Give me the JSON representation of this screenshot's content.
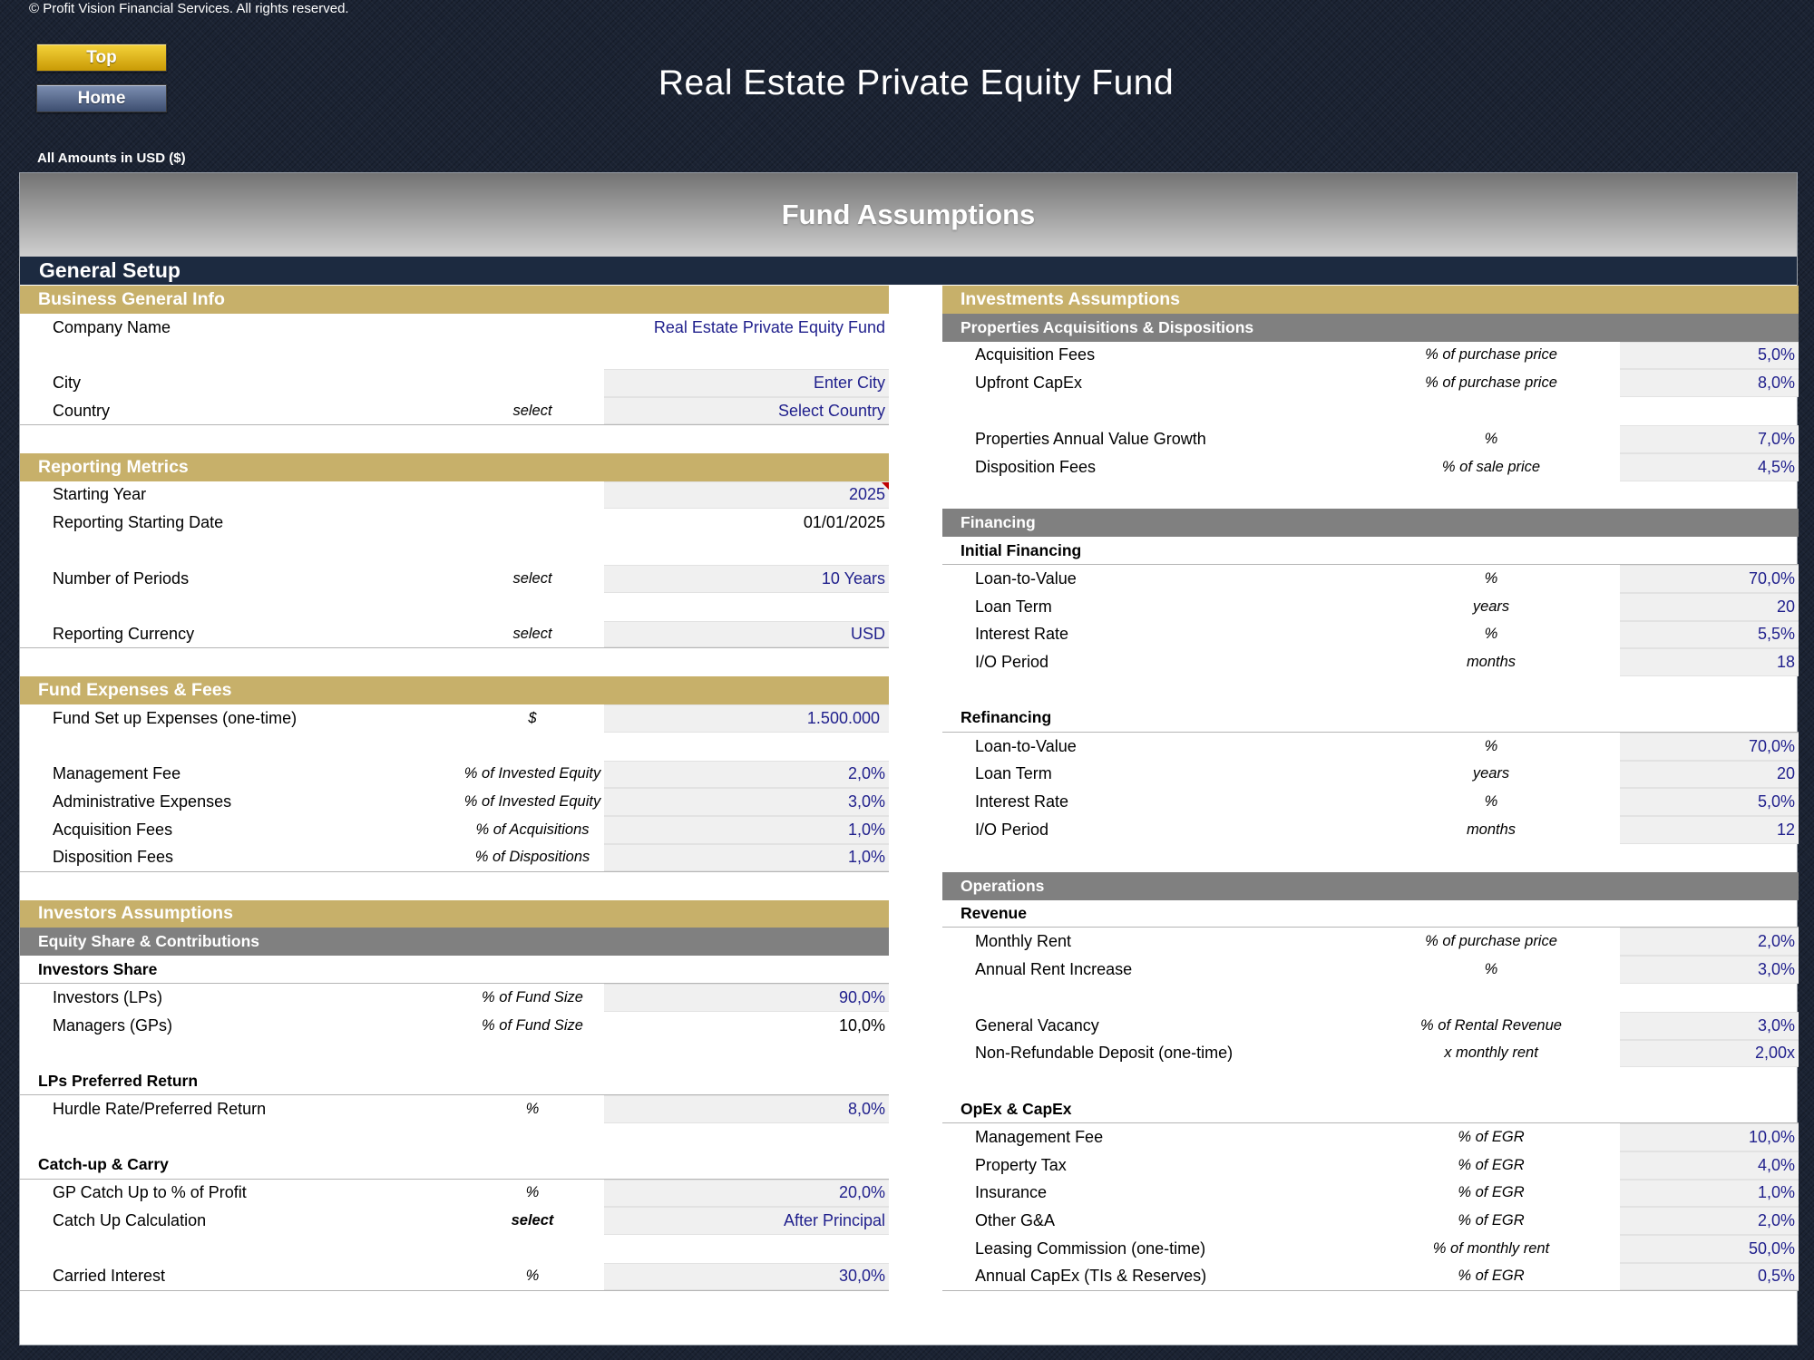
{
  "copyright": "© Profit Vision Financial Services. All rights reserved.",
  "nav": {
    "top_label": "Top",
    "home_label": "Home"
  },
  "title": "Real Estate Private Equity Fund",
  "amounts_note": "All Amounts in  USD ($)",
  "banner": "Fund Assumptions",
  "general_setup": "General Setup",
  "left": {
    "business": {
      "header": "Business General Info",
      "company_label": "Company Name",
      "company_value": "Real Estate Private Equity Fund",
      "city_label": "City",
      "city_value": "Enter City",
      "country_label": "Country",
      "country_unit": "select",
      "country_value": "Select Country"
    },
    "reporting": {
      "header": "Reporting Metrics",
      "start_year_label": "Starting Year",
      "start_year_value": "2025",
      "start_date_label": "Reporting Starting Date",
      "start_date_value": "01/01/2025",
      "periods_label": "Number of Periods",
      "periods_unit": "select",
      "periods_value": "10 Years",
      "currency_label": "Reporting Currency",
      "currency_unit": "select",
      "currency_value": "USD"
    },
    "expenses": {
      "header": "Fund Expenses & Fees",
      "setup_label": "Fund Set up Expenses (one-time)",
      "setup_unit": "$",
      "setup_value": "1.500.000",
      "mgmt_label": "Management Fee",
      "mgmt_unit": "% of Invested Equity",
      "mgmt_value": "2,0%",
      "admin_label": "Administrative Expenses",
      "admin_unit": "% of Invested Equity",
      "admin_value": "3,0%",
      "acq_label": "Acquisition Fees",
      "acq_unit": "% of Acquisitions",
      "acq_value": "1,0%",
      "disp_label": "Disposition Fees",
      "disp_unit": "% of Dispositions",
      "disp_value": "1,0%"
    },
    "investors": {
      "header": "Investors Assumptions",
      "sub": "Equity Share & Contributions",
      "share_group": "Investors Share",
      "lps_label": "Investors (LPs)",
      "lps_unit": "% of Fund Size",
      "lps_value": "90,0%",
      "gps_label": "Managers (GPs)",
      "gps_unit": "% of Fund Size",
      "gps_value": "10,0%",
      "pref_group": "LPs Preferred Return",
      "hurdle_label": "Hurdle Rate/Preferred Return",
      "hurdle_unit": "%",
      "hurdle_value": "8,0%",
      "catch_group": "Catch-up & Carry",
      "gp_catch_label": "GP Catch Up to % of Profit",
      "gp_catch_unit": "%",
      "gp_catch_value": "20,0%",
      "catch_calc_label": "Catch Up Calculation",
      "catch_calc_unit": "select",
      "catch_calc_value": "After Principal",
      "carry_label": "Carried Interest",
      "carry_unit": "%",
      "carry_value": "30,0%"
    }
  },
  "right": {
    "investments": {
      "header": "Investments Assumptions",
      "sub": "Properties Acquisitions & Dispositions",
      "acq_label": "Acquisition Fees",
      "acq_unit": "% of purchase price",
      "acq_value": "5,0%",
      "capex_label": "Upfront CapEx",
      "capex_unit": "% of purchase price",
      "capex_value": "8,0%",
      "growth_label": "Properties Annual Value Growth",
      "growth_unit": "%",
      "growth_value": "7,0%",
      "disp_label": "Disposition Fees",
      "disp_unit": "% of sale price",
      "disp_value": "4,5%"
    },
    "financing": {
      "sub": "Financing",
      "initial_group": "Initial Financing",
      "ltv_label": "Loan-to-Value",
      "ltv_unit": "%",
      "ltv_value": "70,0%",
      "term_label": "Loan Term",
      "term_unit": "years",
      "term_value": "20",
      "rate_label": "Interest Rate",
      "rate_unit": "%",
      "rate_value": "5,5%",
      "io_label": "I/O Period",
      "io_unit": "months",
      "io_value": "18",
      "refi_group": "Refinancing",
      "refi_ltv_label": "Loan-to-Value",
      "refi_ltv_unit": "%",
      "refi_ltv_value": "70,0%",
      "refi_term_label": "Loan Term",
      "refi_term_unit": "years",
      "refi_term_value": "20",
      "refi_rate_label": "Interest Rate",
      "refi_rate_unit": "%",
      "refi_rate_value": "5,0%",
      "refi_io_label": "I/O Period",
      "refi_io_unit": "months",
      "refi_io_value": "12"
    },
    "operations": {
      "sub": "Operations",
      "revenue_group": "Revenue",
      "rent_label": "Monthly Rent",
      "rent_unit": "% of purchase price",
      "rent_value": "2,0%",
      "rent_inc_label": "Annual Rent Increase",
      "rent_inc_unit": "%",
      "rent_inc_value": "3,0%",
      "vacancy_label": "General Vacancy",
      "vacancy_unit": "% of Rental Revenue",
      "vacancy_value": "3,0%",
      "deposit_label": "Non-Refundable Deposit (one-time)",
      "deposit_unit": "x monthly rent",
      "deposit_value": "2,00x",
      "opex_group": "OpEx & CapEx",
      "mgmt_label": "Management Fee",
      "mgmt_unit": "% of EGR",
      "mgmt_value": "10,0%",
      "tax_label": "Property Tax",
      "tax_unit": "% of EGR",
      "tax_value": "4,0%",
      "ins_label": "Insurance",
      "ins_unit": "% of EGR",
      "ins_value": "1,0%",
      "ga_label": "Other G&A",
      "ga_unit": "% of EGR",
      "ga_value": "2,0%",
      "lease_label": "Leasing Commission (one-time)",
      "lease_unit": "% of monthly rent",
      "lease_value": "50,0%",
      "capex_label": "Annual CapEx (TIs & Reserves)",
      "capex_unit": "% of EGR",
      "capex_value": "0,5%"
    }
  }
}
